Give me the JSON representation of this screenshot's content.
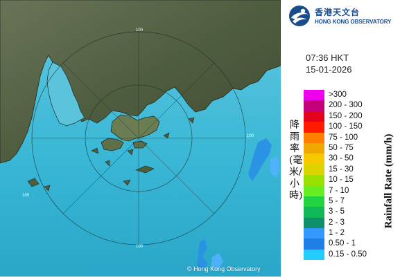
{
  "header": {
    "org_name_zh": "香港天文台",
    "org_name_en": "HONG KONG OBSERVATORY"
  },
  "timestamp": {
    "time": "07:36 HKT",
    "date": "15-01-2026"
  },
  "legend": {
    "title_en": "Rainfall Rate (mm/h)",
    "title_zh": "降雨率(毫米/小時)",
    "items": [
      {
        "label": ">300",
        "color": "#ee00ee"
      },
      {
        "label": "200 - 300",
        "color": "#c4007a"
      },
      {
        "label": "150 - 200",
        "color": "#e3001c"
      },
      {
        "label": "100 - 150",
        "color": "#ff1a00"
      },
      {
        "label": "75 - 100",
        "color": "#ff8000"
      },
      {
        "label": "50 - 75",
        "color": "#f0a800"
      },
      {
        "label": "30 - 50",
        "color": "#f6c800"
      },
      {
        "label": "15 - 30",
        "color": "#dcd400"
      },
      {
        "label": "10 - 15",
        "color": "#98e000"
      },
      {
        "label": "7 - 10",
        "color": "#66ee22"
      },
      {
        "label": "5 - 7",
        "color": "#22d444"
      },
      {
        "label": "3 - 5",
        "color": "#10b858"
      },
      {
        "label": "2 - 3",
        "color": "#10906a"
      },
      {
        "label": "1 - 2",
        "color": "#3399ff"
      },
      {
        "label": "0.50 - 1",
        "color": "#1f7fe6"
      },
      {
        "label": "0.15 - 0.50",
        "color": "#22ccff"
      }
    ]
  },
  "map": {
    "range_labels": [
      "100",
      "100",
      "100",
      "100"
    ],
    "copyright": "© Hong Kong Observatory",
    "colors": {
      "sea": "#3ab8d6",
      "land": "#4a5a3a"
    }
  }
}
